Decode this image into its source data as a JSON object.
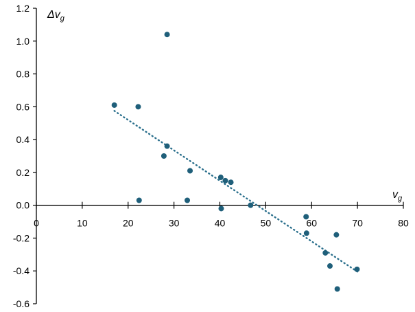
{
  "chart_data": {
    "type": "scatter",
    "title": "",
    "xlabel": {
      "base": "v",
      "sub": "g"
    },
    "ylabel": {
      "base": "Δv",
      "sub": "g"
    },
    "xlim": [
      0,
      80
    ],
    "ylim": [
      -0.6,
      1.2
    ],
    "x_ticks": [
      0,
      10,
      20,
      30,
      40,
      50,
      60,
      70,
      80
    ],
    "y_ticks": [
      -0.6,
      -0.4,
      -0.2,
      0.0,
      0.2,
      0.4,
      0.6,
      0.8,
      1.0,
      1.2
    ],
    "x_tick_labels": [
      "0",
      "10",
      "20",
      "30",
      "40",
      "50",
      "60",
      "70",
      "80"
    ],
    "y_tick_labels": [
      "-0.6",
      "-0.4",
      "-0.2",
      "0.0",
      "0.2",
      "0.4",
      "0.6",
      "0.8",
      "1.0",
      "1.2"
    ],
    "grid": false,
    "marker_color": "#1f5f7a",
    "series": [
      {
        "points": [
          [
            17.0,
            0.61
          ],
          [
            22.2,
            0.6
          ],
          [
            22.4,
            0.03
          ],
          [
            28.5,
            1.04
          ],
          [
            27.8,
            0.3
          ],
          [
            28.5,
            0.36
          ],
          [
            33.5,
            0.21
          ],
          [
            32.9,
            0.03
          ],
          [
            40.2,
            0.17
          ],
          [
            41.2,
            0.15
          ],
          [
            42.4,
            0.14
          ],
          [
            40.3,
            -0.02
          ],
          [
            46.7,
            0.0
          ],
          [
            58.8,
            -0.07
          ],
          [
            58.9,
            -0.17
          ],
          [
            63.0,
            -0.29
          ],
          [
            64.0,
            -0.37
          ],
          [
            65.4,
            -0.18
          ],
          [
            65.6,
            -0.51
          ],
          [
            69.9,
            -0.39
          ]
        ]
      }
    ],
    "trendline": {
      "style": "dotted",
      "color": "#2a6f8c",
      "from": [
        17.0,
        0.575
      ],
      "to": [
        70.0,
        -0.405
      ]
    }
  }
}
